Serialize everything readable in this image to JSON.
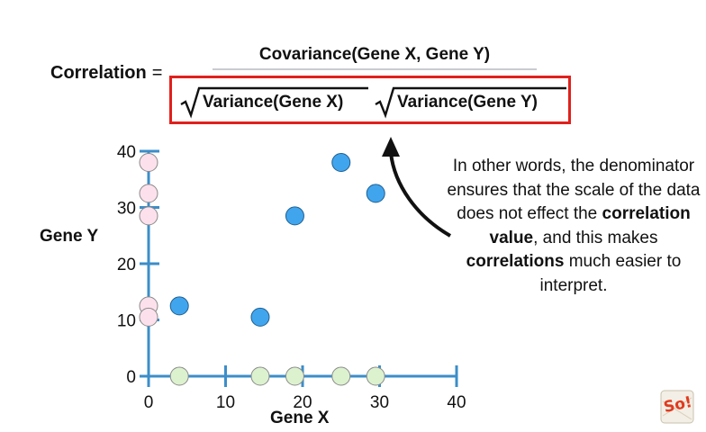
{
  "formula": {
    "lhs": "Correlation",
    "equals": "=",
    "numerator": "Covariance(Gene X, Gene Y)",
    "denominator_left": "Variance(Gene X)",
    "denominator_right": "Variance(Gene Y)"
  },
  "callout": {
    "part1": "In other words, the denominator ensures that the scale of the data does not effect the ",
    "bold1": "correlation value",
    "part2": ", and this makes ",
    "bold2": "correlations",
    "part3": " much easier to interpret."
  },
  "logo_text": "So!",
  "colors": {
    "axis": "#3b8ec9",
    "box": "#e0201c",
    "point_blue": "#41a5ee",
    "point_pink": "#fce1ec",
    "point_green": "#dcf2cf"
  },
  "chart_data": {
    "type": "scatter",
    "xlabel": "Gene X",
    "ylabel": "Gene Y",
    "xlim": [
      0,
      40
    ],
    "ylim": [
      0,
      40
    ],
    "x_ticks": [
      "0",
      "10",
      "20",
      "30",
      "40"
    ],
    "y_ticks": [
      "0",
      "10",
      "20",
      "30",
      "40"
    ],
    "grid": false,
    "points": [
      {
        "x": 4,
        "y": 12.5
      },
      {
        "x": 14.5,
        "y": 10.5
      },
      {
        "x": 19,
        "y": 28.5
      },
      {
        "x": 25,
        "y": 38
      },
      {
        "x": 29.5,
        "y": 32.5
      }
    ],
    "y_projections": [
      38,
      32.5,
      28.5,
      12.5,
      10.5
    ],
    "x_projections": [
      4,
      14.5,
      19,
      25,
      29.5
    ]
  }
}
